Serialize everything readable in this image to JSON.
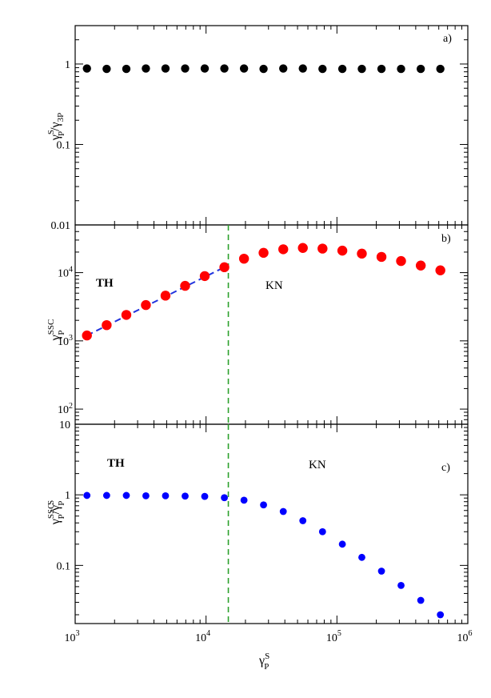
{
  "colors": {
    "black": "#000000",
    "red": "#ff0000",
    "blue": "#0000ff",
    "green_dashed": "#2ca02c",
    "fit_dashed": "#2233dd"
  },
  "chart_data": [
    {
      "type": "scatter",
      "panel_label": "a)",
      "ylabel": {
        "main": "γ",
        "sup": "S",
        "sub": "P",
        "slash": "/γ",
        "sub2": "3P"
      },
      "yscale": "log",
      "ylim": [
        0.01,
        3
      ],
      "ytick_labels": [
        {
          "value": 1,
          "label": "1"
        },
        {
          "value": 0.1,
          "label": "0.1"
        },
        {
          "value": 0.01,
          "label": "0.01"
        }
      ],
      "xscale": "log",
      "xlim": [
        1000,
        1000000
      ],
      "series": [
        {
          "color": "#000000",
          "x": [
            1230,
            1740,
            2460,
            3470,
            4900,
            6920,
            9770,
            13800,
            19500,
            27500,
            38900,
            54900,
            77600,
            110000,
            155000,
            219000,
            309000,
            437000,
            617000
          ],
          "y": [
            0.88,
            0.87,
            0.87,
            0.88,
            0.88,
            0.88,
            0.88,
            0.88,
            0.88,
            0.87,
            0.88,
            0.88,
            0.87,
            0.87,
            0.87,
            0.87,
            0.87,
            0.87,
            0.87
          ]
        }
      ]
    },
    {
      "type": "scatter",
      "panel_label": "b)",
      "ylabel": {
        "main": "γ",
        "sup": "SSC",
        "sub": "P"
      },
      "yscale": "log",
      "ylim": [
        60,
        50000
      ],
      "ytick_labels": [
        {
          "value": 10000,
          "base": "10",
          "exp": "4"
        },
        {
          "value": 1000,
          "base": "10",
          "exp": "3"
        },
        {
          "value": 100,
          "base": "10",
          "exp": "2"
        }
      ],
      "xscale": "log",
      "xlim": [
        1000,
        1000000
      ],
      "annotations": [
        {
          "text": "TH"
        },
        {
          "text": "KN"
        }
      ],
      "vline_x": 14800,
      "fit_line": {
        "x": [
          1230,
          13800
        ],
        "y": [
          1200,
          12000
        ]
      },
      "series": [
        {
          "color": "#ff0000",
          "x": [
            1230,
            1740,
            2460,
            3470,
            4900,
            6920,
            9770,
            13800,
            19500,
            27500,
            38900,
            54900,
            77600,
            110000,
            155000,
            219000,
            309000,
            437000,
            617000
          ],
          "y": [
            1200,
            1700,
            2400,
            3350,
            4600,
            6400,
            8900,
            12000,
            16000,
            19500,
            22000,
            23000,
            22500,
            21000,
            19000,
            17000,
            14800,
            12700,
            10800
          ]
        }
      ]
    },
    {
      "type": "scatter",
      "panel_label": "c)",
      "ylabel": {
        "main": "γ",
        "sup": "SSC",
        "sub": "P",
        "slash": "/γ",
        "sup2": "S",
        "sub2": "P"
      },
      "yscale": "log",
      "ylim": [
        0.015,
        10
      ],
      "ytick_labels": [
        {
          "value": 10,
          "label": "10"
        },
        {
          "value": 1,
          "label": "1"
        },
        {
          "value": 0.1,
          "label": "0.1"
        }
      ],
      "xscale": "log",
      "xlim": [
        1000,
        1000000
      ],
      "xlabel": {
        "main": "γ",
        "sup": "S",
        "sub": "P"
      },
      "xtick_labels": [
        {
          "value": 1000,
          "base": "10",
          "exp": "3"
        },
        {
          "value": 10000,
          "base": "10",
          "exp": "4"
        },
        {
          "value": 100000,
          "base": "10",
          "exp": "5"
        },
        {
          "value": 1000000,
          "base": "10",
          "exp": "6"
        }
      ],
      "annotations": [
        {
          "text": "TH"
        },
        {
          "text": "KN"
        }
      ],
      "vline_x": 14800,
      "series": [
        {
          "color": "#0000ff",
          "x": [
            1230,
            1740,
            2460,
            3470,
            4900,
            6920,
            9770,
            13800,
            19500,
            27500,
            38900,
            54900,
            77600,
            110000,
            155000,
            219000,
            309000,
            437000,
            617000
          ],
          "y": [
            0.98,
            0.98,
            0.98,
            0.97,
            0.97,
            0.96,
            0.95,
            0.91,
            0.84,
            0.72,
            0.58,
            0.43,
            0.3,
            0.2,
            0.13,
            0.083,
            0.052,
            0.032,
            0.02
          ]
        }
      ]
    }
  ]
}
